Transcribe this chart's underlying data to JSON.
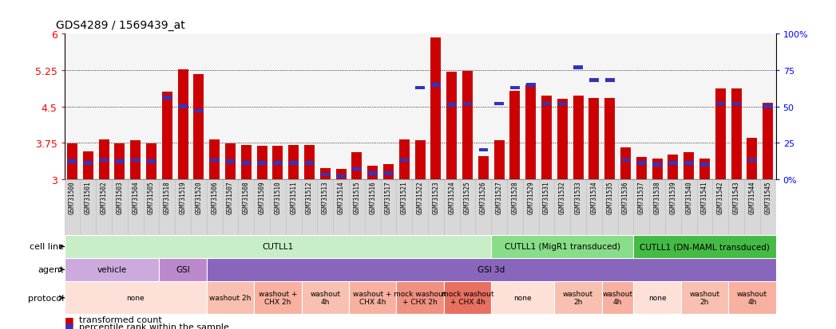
{
  "title": "GDS4289 / 1569439_at",
  "samples": [
    "GSM731500",
    "GSM731501",
    "GSM731502",
    "GSM731503",
    "GSM731504",
    "GSM731505",
    "GSM731518",
    "GSM731519",
    "GSM731520",
    "GSM731506",
    "GSM731507",
    "GSM731508",
    "GSM731509",
    "GSM731510",
    "GSM731511",
    "GSM731512",
    "GSM731513",
    "GSM731514",
    "GSM731515",
    "GSM731516",
    "GSM731517",
    "GSM731521",
    "GSM731522",
    "GSM731523",
    "GSM731524",
    "GSM731525",
    "GSM731526",
    "GSM731527",
    "GSM731528",
    "GSM731529",
    "GSM731531",
    "GSM731532",
    "GSM731533",
    "GSM731534",
    "GSM731535",
    "GSM731536",
    "GSM731537",
    "GSM731538",
    "GSM731539",
    "GSM731540",
    "GSM731541",
    "GSM731542",
    "GSM731543",
    "GSM731544",
    "GSM731545"
  ],
  "red_values": [
    3.73,
    3.57,
    3.82,
    3.73,
    3.8,
    3.73,
    4.8,
    5.27,
    5.17,
    3.82,
    3.73,
    3.7,
    3.68,
    3.68,
    3.7,
    3.7,
    3.22,
    3.2,
    3.55,
    3.27,
    3.3,
    3.82,
    3.8,
    5.93,
    5.22,
    5.23,
    3.47,
    3.8,
    4.82,
    4.95,
    4.72,
    4.65,
    4.73,
    4.67,
    4.67,
    3.65,
    3.45,
    3.42,
    3.5,
    3.56,
    3.42,
    4.87,
    4.87,
    3.85,
    4.57
  ],
  "blue_pct": [
    12,
    11,
    13,
    12,
    13,
    12,
    56,
    50,
    47,
    13,
    12,
    11,
    11,
    11,
    11,
    11,
    3,
    2,
    7,
    4,
    4,
    13,
    63,
    65,
    51,
    52,
    20,
    52,
    63,
    65,
    52,
    52,
    77,
    68,
    68,
    13,
    11,
    10,
    11,
    11,
    10,
    52,
    52,
    13,
    50
  ],
  "ymin": 3.0,
  "ymax": 6.0,
  "ytick_vals": [
    3.0,
    3.75,
    4.5,
    5.25,
    6.0
  ],
  "ytick_labels": [
    "3",
    "3.75",
    "4.5",
    "5.25",
    "6"
  ],
  "right_pct_vals": [
    0,
    25,
    50,
    75,
    100
  ],
  "right_pct_labels": [
    "0%",
    "25",
    "50",
    "75",
    "100%"
  ],
  "bar_color": "#cc0000",
  "blue_color": "#3333bb",
  "chart_bg": "#f5f5f5",
  "cell_line_groups": [
    {
      "label": "CUTLL1",
      "start": 0,
      "end": 27,
      "color": "#c8eec8"
    },
    {
      "label": "CUTLL1 (MigR1 transduced)",
      "start": 27,
      "end": 36,
      "color": "#88dd88"
    },
    {
      "label": "CUTLL1 (DN-MAML transduced)",
      "start": 36,
      "end": 45,
      "color": "#44bb44"
    }
  ],
  "agent_groups": [
    {
      "label": "vehicle",
      "start": 0,
      "end": 6,
      "color": "#ccaadd"
    },
    {
      "label": "GSI",
      "start": 6,
      "end": 9,
      "color": "#bb88cc"
    },
    {
      "label": "GSI 3d",
      "start": 9,
      "end": 45,
      "color": "#8866bb"
    }
  ],
  "protocol_groups": [
    {
      "label": "none",
      "start": 0,
      "end": 9,
      "color": "#fde0d8"
    },
    {
      "label": "washout 2h",
      "start": 9,
      "end": 12,
      "color": "#f8c0b0"
    },
    {
      "label": "washout +\nCHX 2h",
      "start": 12,
      "end": 15,
      "color": "#f8b0a0"
    },
    {
      "label": "washout\n4h",
      "start": 15,
      "end": 18,
      "color": "#f8c0b0"
    },
    {
      "label": "washout +\nCHX 4h",
      "start": 18,
      "end": 21,
      "color": "#f8b0a0"
    },
    {
      "label": "mock washout\n+ CHX 2h",
      "start": 21,
      "end": 24,
      "color": "#f09080"
    },
    {
      "label": "mock washout\n+ CHX 4h",
      "start": 24,
      "end": 27,
      "color": "#e87060"
    },
    {
      "label": "none",
      "start": 27,
      "end": 31,
      "color": "#fde0d8"
    },
    {
      "label": "washout\n2h",
      "start": 31,
      "end": 34,
      "color": "#f8c0b0"
    },
    {
      "label": "washout\n4h",
      "start": 34,
      "end": 36,
      "color": "#f8b0a0"
    },
    {
      "label": "none",
      "start": 36,
      "end": 39,
      "color": "#fde0d8"
    },
    {
      "label": "washout\n2h",
      "start": 39,
      "end": 42,
      "color": "#f8c0b0"
    },
    {
      "label": "washout\n4h",
      "start": 42,
      "end": 45,
      "color": "#f8b0a0"
    }
  ]
}
